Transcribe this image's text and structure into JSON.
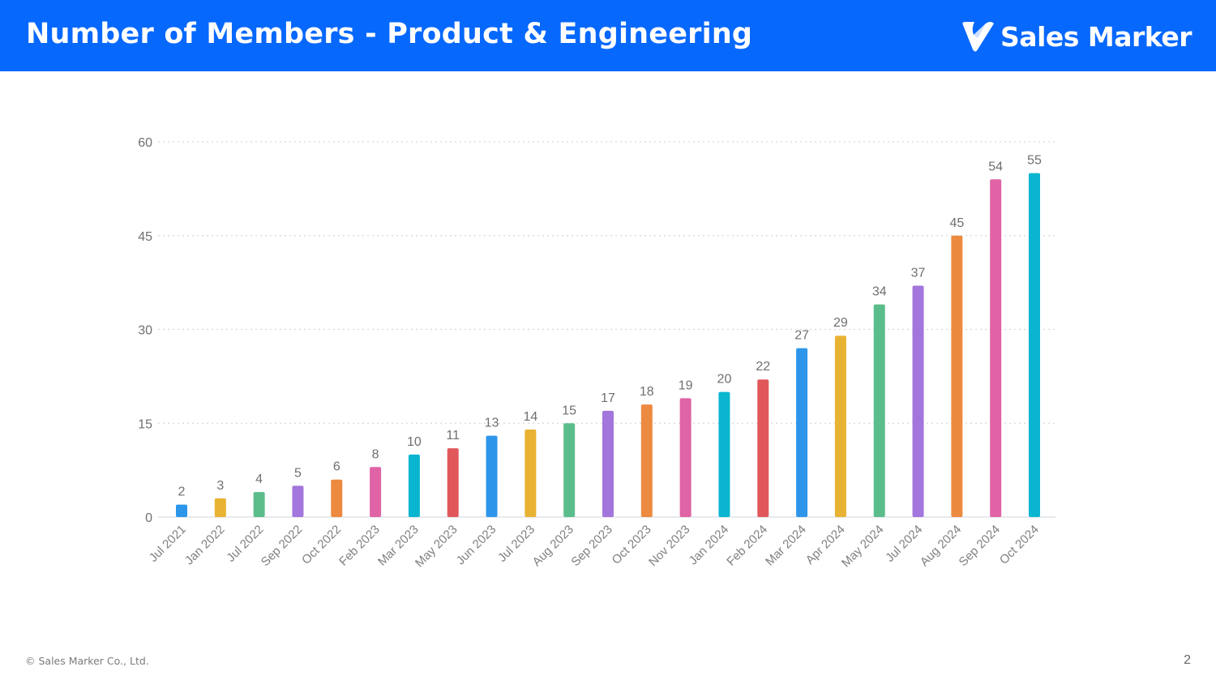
{
  "header": {
    "title": "Number of Members - Product & Engineering",
    "logo_text": "Sales Marker",
    "logo_icon": "check-pin-icon",
    "background_color": "#0768fd"
  },
  "footer": {
    "copyright": "© Sales Marker Co., Ltd.",
    "page_number": "2"
  },
  "chart_data": {
    "type": "bar",
    "title": "",
    "xlabel": "",
    "ylabel": "",
    "ylim": [
      0,
      60
    ],
    "yticks": [
      0,
      15,
      30,
      45,
      60
    ],
    "grid": true,
    "grid_style": "dotted",
    "legend": "none",
    "categories": [
      "Jul 2021",
      "Jan 2022",
      "Jul 2022",
      "Sep 2022",
      "Oct 2022",
      "Feb 2023",
      "Mar 2023",
      "May 2023",
      "Jun 2023",
      "Jul 2023",
      "Aug 2023",
      "Sep 2023",
      "Oct 2023",
      "Nov 2023",
      "Jan 2024",
      "Feb 2024",
      "Mar 2024",
      "Apr 2024",
      "May 2024",
      "Jul 2024",
      "Aug 2024",
      "Sep 2024",
      "Oct 2024"
    ],
    "values": [
      2,
      3,
      4,
      5,
      6,
      8,
      10,
      11,
      13,
      14,
      15,
      17,
      18,
      19,
      20,
      22,
      27,
      29,
      34,
      37,
      45,
      54,
      55
    ],
    "data_labels": [
      "2",
      "3",
      "4",
      "5",
      "6",
      "8",
      "10",
      "11",
      "13",
      "14",
      "15",
      "17",
      "18",
      "19",
      "20",
      "22",
      "27",
      "29",
      "34",
      "37",
      "45",
      "54",
      "55"
    ],
    "colors": [
      "#2e96ea",
      "#e8b232",
      "#5bbd8b",
      "#a276dc",
      "#ec8a40",
      "#df63a5",
      "#0ab5cf",
      "#e0585a",
      "#2e96ea",
      "#e8b232",
      "#5bbd8b",
      "#a276dc",
      "#ec8a40",
      "#df63a5",
      "#0ab5cf",
      "#e0585a",
      "#2e96ea",
      "#e8b232",
      "#5bbd8b",
      "#a276dc",
      "#ec8a40",
      "#df63a5",
      "#0ab5cf"
    ]
  }
}
